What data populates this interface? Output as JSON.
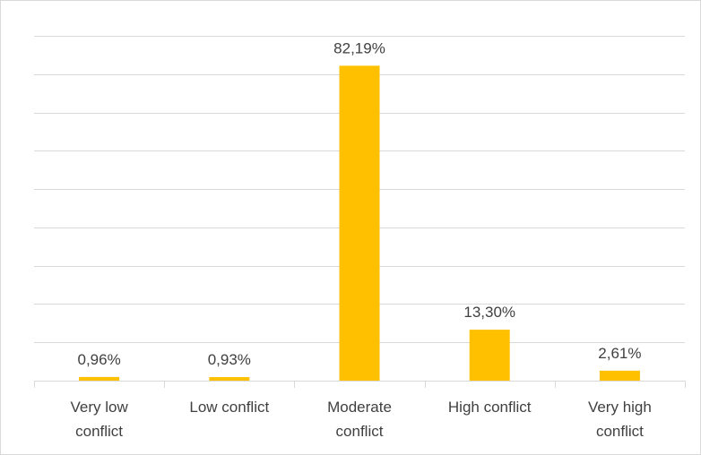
{
  "chart_data": {
    "type": "bar",
    "categories": [
      [
        "Very low",
        "conflict"
      ],
      [
        "Low conflict"
      ],
      [
        "Moderate",
        "conflict"
      ],
      [
        "High conflict"
      ],
      [
        "Very high",
        "conflict"
      ]
    ],
    "values": [
      0.96,
      0.93,
      82.19,
      13.3,
      2.61
    ],
    "value_labels": [
      "0,96%",
      "0,93%",
      "82,19%",
      "13,30%",
      "2,61%"
    ],
    "ylim": [
      0,
      90
    ],
    "grid": true,
    "colors": {
      "bar": "#FFC000",
      "grid": "#D9D9D9",
      "text": "#404040"
    }
  }
}
